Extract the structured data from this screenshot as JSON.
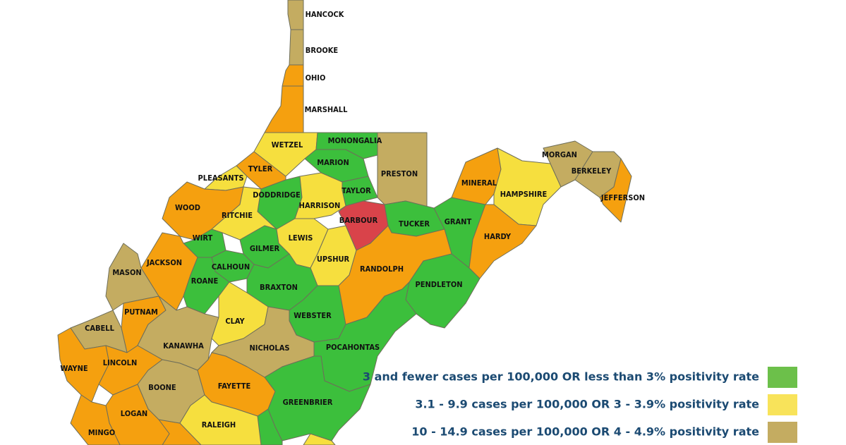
{
  "map": {
    "counties": [
      {
        "name": "HANCOCK",
        "color": "#c4ac61"
      },
      {
        "name": "BROOKE",
        "color": "#c4ac61"
      },
      {
        "name": "OHIO",
        "color": "#f5a00f"
      },
      {
        "name": "MARSHALL",
        "color": "#f5a00f"
      },
      {
        "name": "WETZEL",
        "color": "#f6df3e"
      },
      {
        "name": "MONONGALIA",
        "color": "#3cbf3c"
      },
      {
        "name": "PRESTON",
        "color": "#c4ac61"
      },
      {
        "name": "MARION",
        "color": "#3cbf3c"
      },
      {
        "name": "TYLER",
        "color": "#f5a00f"
      },
      {
        "name": "PLEASANTS",
        "color": "#f6df3e"
      },
      {
        "name": "TAYLOR",
        "color": "#3cbf3c"
      },
      {
        "name": "DODDRIDGE",
        "color": "#3cbf3c"
      },
      {
        "name": "HARRISON",
        "color": "#f6df3e"
      },
      {
        "name": "WOOD",
        "color": "#f5a00f"
      },
      {
        "name": "RITCHIE",
        "color": "#f6df3e"
      },
      {
        "name": "BARBOUR",
        "color": "#d9434a"
      },
      {
        "name": "TUCKER",
        "color": "#3cbf3c"
      },
      {
        "name": "GRANT",
        "color": "#3cbf3c"
      },
      {
        "name": "MINERAL",
        "color": "#f5a00f"
      },
      {
        "name": "HAMPSHIRE",
        "color": "#f6df3e"
      },
      {
        "name": "MORGAN",
        "color": "#c4ac61"
      },
      {
        "name": "BERKELEY",
        "color": "#c4ac61"
      },
      {
        "name": "JEFFERSON",
        "color": "#f5a00f"
      },
      {
        "name": "HARDY",
        "color": "#f5a00f"
      },
      {
        "name": "WIRT",
        "color": "#3cbf3c"
      },
      {
        "name": "GILMER",
        "color": "#3cbf3c"
      },
      {
        "name": "LEWIS",
        "color": "#f6df3e"
      },
      {
        "name": "UPSHUR",
        "color": "#f6df3e"
      },
      {
        "name": "RANDOLPH",
        "color": "#f5a00f"
      },
      {
        "name": "PENDLETON",
        "color": "#3cbf3c"
      },
      {
        "name": "JACKSON",
        "color": "#f5a00f"
      },
      {
        "name": "CALHOUN",
        "color": "#3cbf3c"
      },
      {
        "name": "ROANE",
        "color": "#3cbf3c"
      },
      {
        "name": "BRAXTON",
        "color": "#3cbf3c"
      },
      {
        "name": "MASON",
        "color": "#c4ac61"
      },
      {
        "name": "PUTNAM",
        "color": "#f5a00f"
      },
      {
        "name": "CABELL",
        "color": "#c4ac61"
      },
      {
        "name": "KANAWHA",
        "color": "#c4ac61"
      },
      {
        "name": "CLAY",
        "color": "#f6df3e"
      },
      {
        "name": "WEBSTER",
        "color": "#3cbf3c"
      },
      {
        "name": "NICHOLAS",
        "color": "#c4ac61"
      },
      {
        "name": "POCAHONTAS",
        "color": "#3cbf3c"
      },
      {
        "name": "WAYNE",
        "color": "#f5a00f"
      },
      {
        "name": "LINCOLN",
        "color": "#f5a00f"
      },
      {
        "name": "BOONE",
        "color": "#c4ac61"
      },
      {
        "name": "FAYETTE",
        "color": "#f5a00f"
      },
      {
        "name": "GREENBRIER",
        "color": "#3cbf3c"
      },
      {
        "name": "LOGAN",
        "color": "#f5a00f"
      },
      {
        "name": "MINGO",
        "color": "#f5a00f"
      },
      {
        "name": "RALEIGH",
        "color": "#f6df3e"
      }
    ]
  },
  "legend": [
    {
      "label": "3 and fewer cases per 100,000 OR less than 3% positivity rate",
      "color": "#6cc04a"
    },
    {
      "label": "3.1 - 9.9 cases per 100,000 OR 3 - 3.9% positivity rate",
      "color": "#f8e35a"
    },
    {
      "label": "10 - 14.9 cases per 100,000 OR 4 - 4.9% positivity rate",
      "color": "#c4ac61"
    }
  ]
}
